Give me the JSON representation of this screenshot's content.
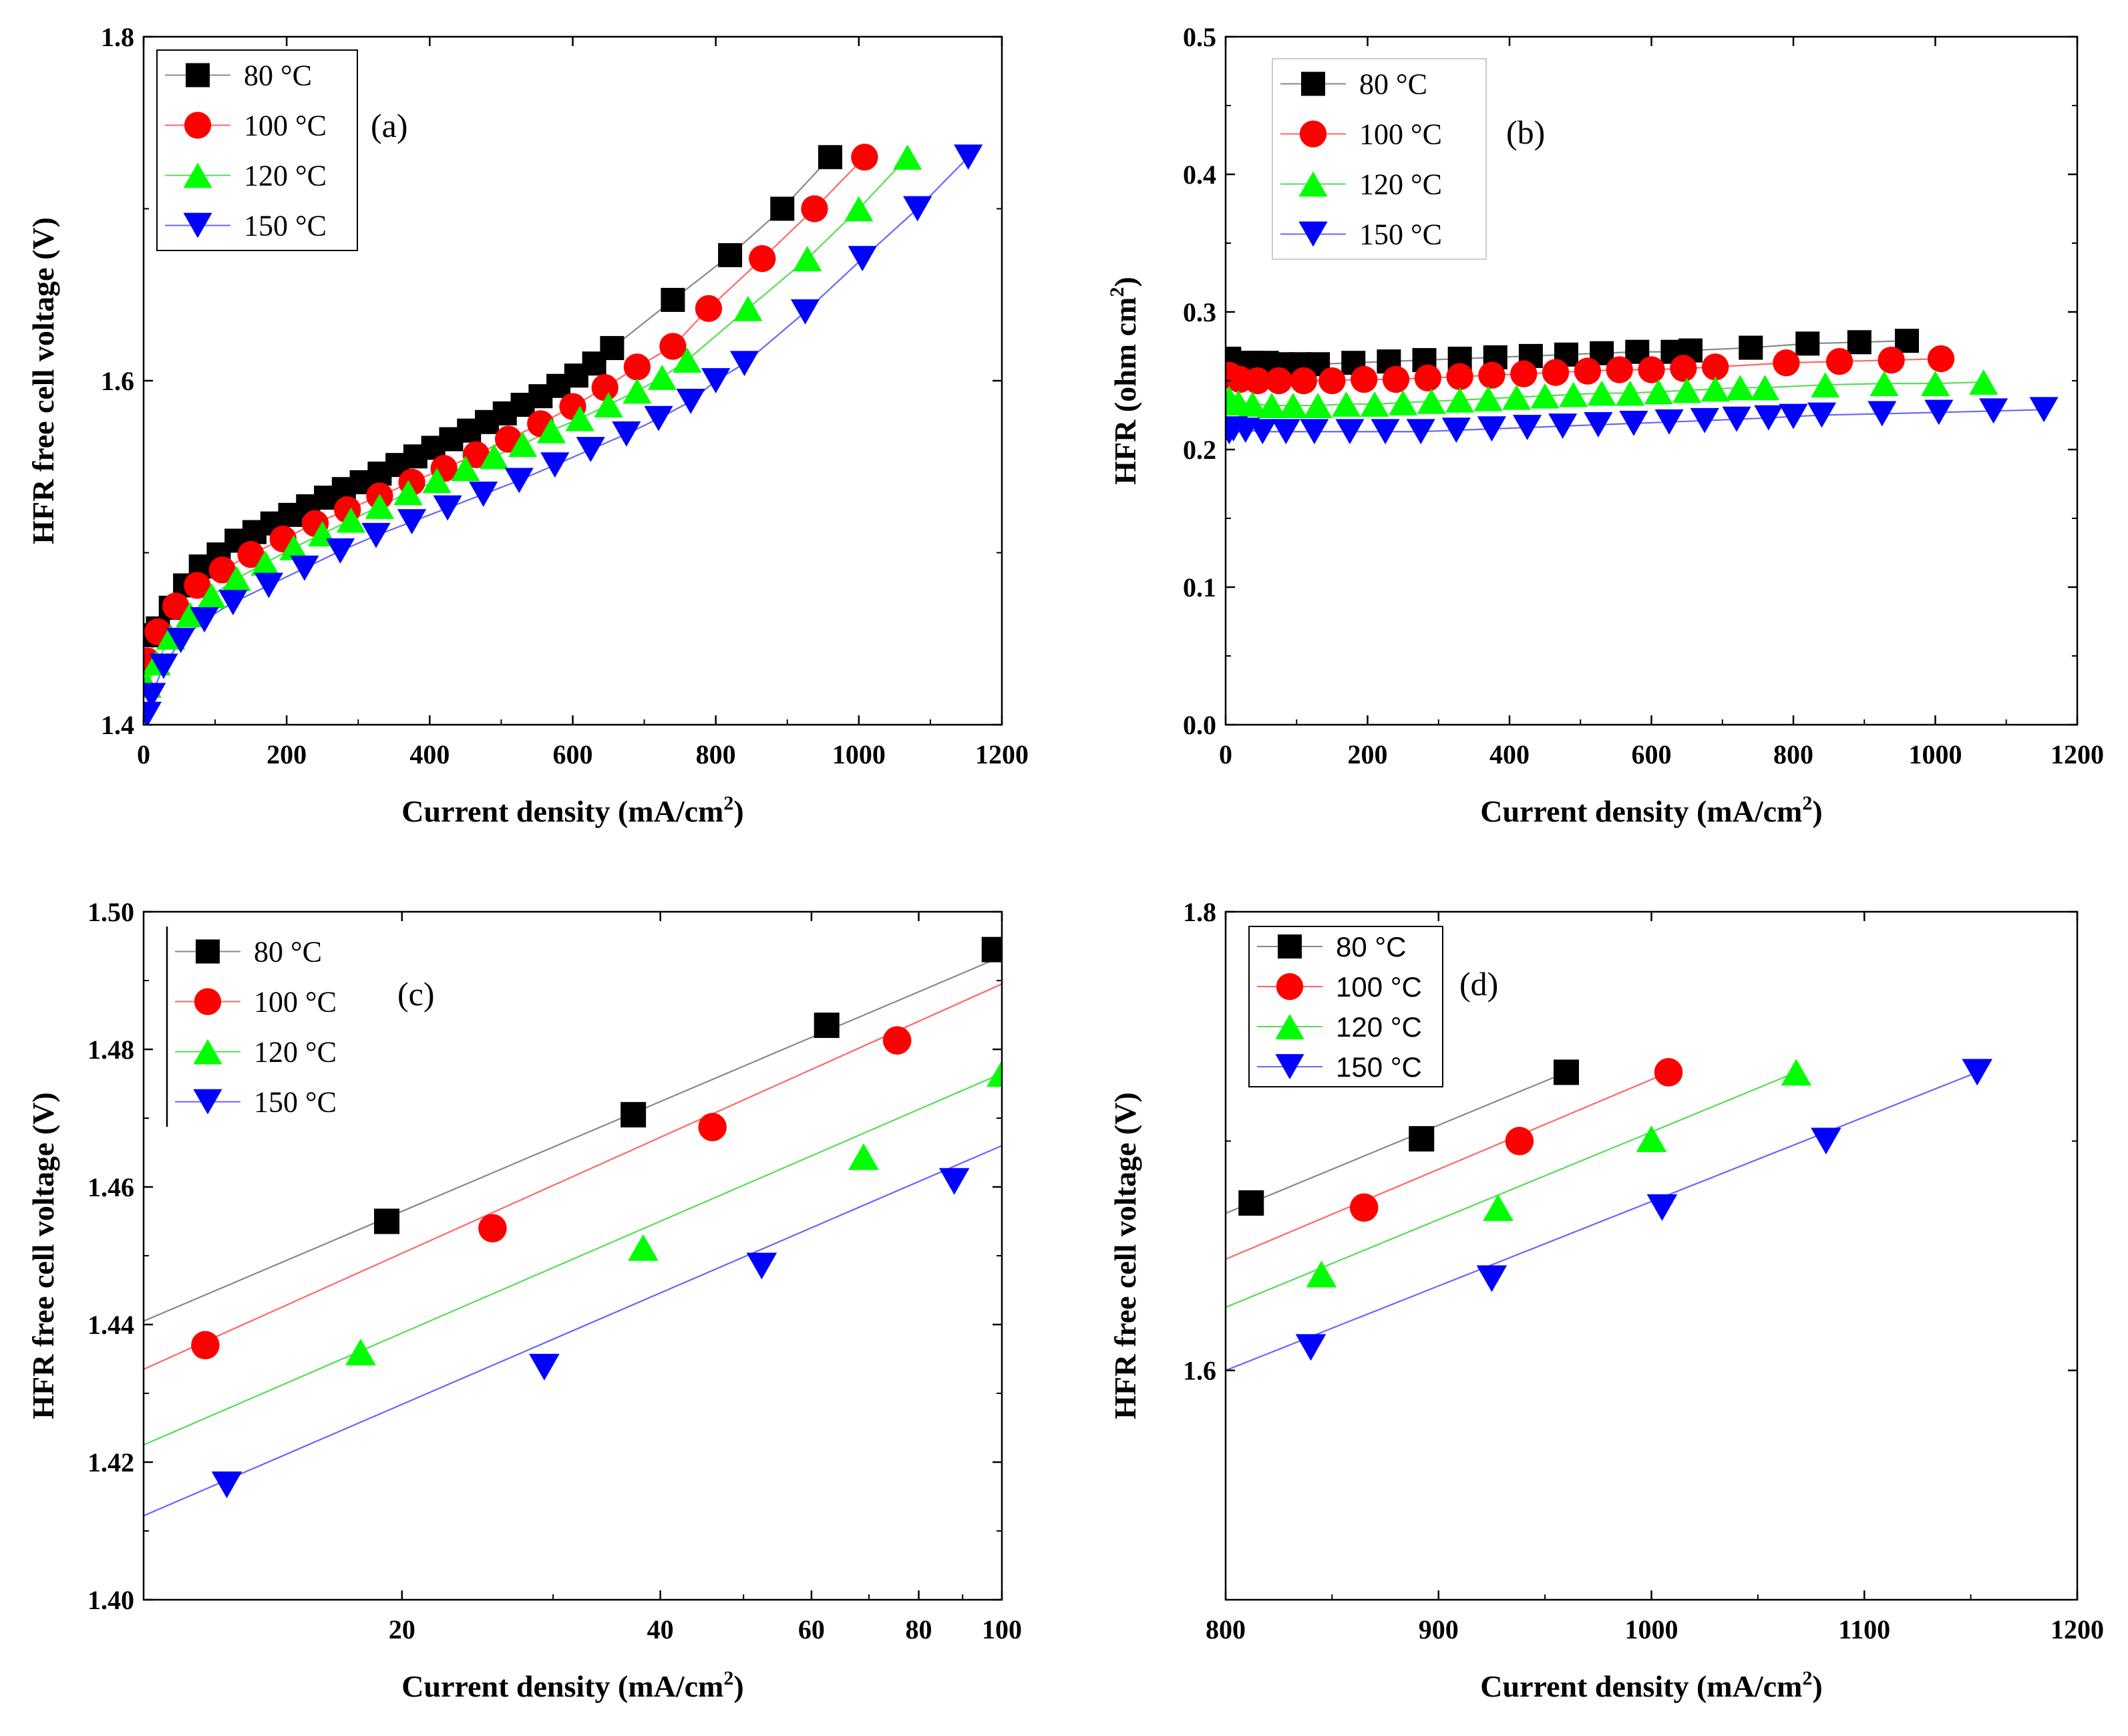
{
  "colors": {
    "s80": "#000000",
    "s100": "#ff0000",
    "s120": "#00ff00",
    "s150": "#0000ff",
    "line80": "#888888",
    "line100": "#ff6666",
    "line120": "#55dd55",
    "line150": "#6666ff"
  },
  "chart_data": [
    {
      "panel": "a",
      "type": "scatter",
      "tag": "(a)",
      "xlabel": "Current density (mA/cm",
      "xlabel_sup": "2",
      "xlabel_tail": ")",
      "ylabel": "HFR free cell voltage (V)",
      "xlim": [
        0,
        1200
      ],
      "ylim": [
        1.4,
        1.8
      ],
      "x_scale": "linear",
      "xticks": [
        0,
        200,
        400,
        600,
        800,
        1000,
        1200
      ],
      "xtick_labels": [
        "0",
        "200",
        "400",
        "600",
        "800",
        "1000",
        "1200"
      ],
      "yticks": [
        1.4,
        1.6,
        1.8
      ],
      "ytick_labels": [
        "1.4",
        "1.6",
        "1.8"
      ],
      "legend_position": "top-left",
      "series": [
        {
          "name": "80 °C",
          "marker": "square",
          "color_key": "s80",
          "line_key": "line80",
          "x": [
            5,
            20,
            38,
            58,
            80,
            105,
            130,
            155,
            180,
            205,
            230,
            255,
            280,
            305,
            330,
            355,
            380,
            405,
            430,
            455,
            480,
            505,
            530,
            555,
            580,
            605,
            630,
            655,
            740,
            820,
            893,
            960
          ],
          "y": [
            1.452,
            1.456,
            1.468,
            1.481,
            1.492,
            1.499,
            1.507,
            1.512,
            1.517,
            1.522,
            1.527,
            1.532,
            1.537,
            1.541,
            1.546,
            1.551,
            1.556,
            1.561,
            1.566,
            1.571,
            1.576,
            1.581,
            1.586,
            1.591,
            1.597,
            1.603,
            1.61,
            1.619,
            1.647,
            1.673,
            1.7,
            1.73
          ]
        },
        {
          "name": "100 °C",
          "marker": "circle",
          "color_key": "s100",
          "line_key": "line100",
          "x": [
            5,
            20,
            45,
            75,
            110,
            150,
            195,
            240,
            285,
            330,
            375,
            420,
            465,
            510,
            555,
            600,
            645,
            690,
            740,
            790,
            865,
            938,
            1008
          ],
          "y": [
            1.437,
            1.454,
            1.469,
            1.481,
            1.49,
            1.499,
            1.508,
            1.517,
            1.525,
            1.533,
            1.541,
            1.549,
            1.557,
            1.566,
            1.575,
            1.585,
            1.596,
            1.608,
            1.62,
            1.642,
            1.671,
            1.7,
            1.73
          ]
        },
        {
          "name": "120 °C",
          "marker": "triangle-up",
          "color_key": "s120",
          "line_key": "line120",
          "x": [
            5,
            18,
            38,
            65,
            95,
            130,
            170,
            210,
            250,
            290,
            330,
            370,
            410,
            450,
            490,
            530,
            570,
            610,
            650,
            690,
            725,
            760,
            845,
            928,
            1000,
            1068
          ],
          "y": [
            1.423,
            1.436,
            1.451,
            1.464,
            1.475,
            1.485,
            1.494,
            1.503,
            1.511,
            1.519,
            1.527,
            1.535,
            1.542,
            1.549,
            1.556,
            1.563,
            1.571,
            1.578,
            1.586,
            1.594,
            1.602,
            1.612,
            1.642,
            1.671,
            1.7,
            1.73
          ]
        },
        {
          "name": "150 °C",
          "marker": "triangle-down",
          "color_key": "s150",
          "line_key": "line150",
          "x": [
            5,
            11,
            28,
            52,
            85,
            125,
            175,
            225,
            275,
            325,
            375,
            425,
            475,
            525,
            575,
            625,
            675,
            720,
            765,
            800,
            840,
            925,
            1005,
            1082,
            1153
          ],
          "y": [
            1.406,
            1.417,
            1.434,
            1.449,
            1.461,
            1.471,
            1.481,
            1.491,
            1.501,
            1.51,
            1.518,
            1.526,
            1.534,
            1.542,
            1.551,
            1.56,
            1.569,
            1.578,
            1.588,
            1.6,
            1.61,
            1.64,
            1.671,
            1.7,
            1.73
          ]
        }
      ]
    },
    {
      "panel": "b",
      "type": "scatter",
      "tag": "(b)",
      "xlabel": "Current density (mA/cm",
      "xlabel_sup": "2",
      "xlabel_tail": ")",
      "ylabel": "HFR (ohm cm",
      "ylabel_sup": "2",
      "ylabel_tail": ")",
      "xlim": [
        0,
        1200
      ],
      "ylim": [
        0.0,
        0.5
      ],
      "x_scale": "linear",
      "xticks": [
        0,
        200,
        400,
        600,
        800,
        1000,
        1200
      ],
      "xtick_labels": [
        "0",
        "200",
        "400",
        "600",
        "800",
        "1000",
        "1200"
      ],
      "yticks": [
        0.0,
        0.1,
        0.2,
        0.3,
        0.4,
        0.5
      ],
      "ytick_labels": [
        "0.0",
        "0.1",
        "0.2",
        "0.3",
        "0.4",
        "0.5"
      ],
      "legend_position": "top-left",
      "series": [
        {
          "name": "80 °C",
          "marker": "square",
          "color_key": "s80",
          "line_key": "line80",
          "x": [
            5,
            20,
            38,
            58,
            80,
            105,
            130,
            180,
            230,
            280,
            330,
            380,
            430,
            480,
            530,
            580,
            630,
            655,
            740,
            820,
            893,
            960
          ],
          "y": [
            0.266,
            0.263,
            0.263,
            0.263,
            0.262,
            0.262,
            0.262,
            0.263,
            0.264,
            0.265,
            0.266,
            0.267,
            0.268,
            0.269,
            0.27,
            0.271,
            0.271,
            0.272,
            0.274,
            0.277,
            0.278,
            0.279
          ]
        },
        {
          "name": "100 °C",
          "marker": "circle",
          "color_key": "s100",
          "line_key": "line100",
          "x": [
            5,
            20,
            45,
            75,
            110,
            150,
            195,
            240,
            285,
            330,
            375,
            420,
            465,
            510,
            555,
            600,
            645,
            690,
            790,
            865,
            938,
            1008
          ],
          "y": [
            0.254,
            0.251,
            0.25,
            0.25,
            0.25,
            0.25,
            0.251,
            0.251,
            0.252,
            0.253,
            0.254,
            0.255,
            0.256,
            0.257,
            0.258,
            0.258,
            0.259,
            0.26,
            0.263,
            0.264,
            0.265,
            0.266
          ]
        },
        {
          "name": "120 °C",
          "marker": "triangle-up",
          "color_key": "s120",
          "line_key": "line120",
          "x": [
            5,
            18,
            38,
            65,
            95,
            130,
            170,
            210,
            250,
            290,
            330,
            370,
            410,
            450,
            490,
            530,
            570,
            610,
            650,
            690,
            725,
            760,
            845,
            928,
            1000,
            1068
          ],
          "y": [
            0.237,
            0.234,
            0.233,
            0.232,
            0.232,
            0.232,
            0.233,
            0.233,
            0.234,
            0.235,
            0.236,
            0.237,
            0.238,
            0.239,
            0.24,
            0.241,
            0.241,
            0.242,
            0.243,
            0.244,
            0.245,
            0.245,
            0.247,
            0.248,
            0.248,
            0.249
          ]
        },
        {
          "name": "150 °C",
          "marker": "triangle-down",
          "color_key": "s150",
          "line_key": "line150",
          "x": [
            5,
            11,
            28,
            52,
            85,
            125,
            175,
            225,
            275,
            325,
            375,
            425,
            475,
            525,
            575,
            625,
            675,
            720,
            765,
            800,
            840,
            925,
            1005,
            1082,
            1153
          ],
          "y": [
            0.213,
            0.215,
            0.214,
            0.213,
            0.213,
            0.213,
            0.213,
            0.213,
            0.213,
            0.214,
            0.215,
            0.216,
            0.217,
            0.218,
            0.219,
            0.22,
            0.221,
            0.222,
            0.223,
            0.224,
            0.225,
            0.226,
            0.227,
            0.228,
            0.229
          ]
        }
      ]
    },
    {
      "panel": "c",
      "type": "scatter",
      "tag": "(c)",
      "xlabel": "Current density (mA/cm",
      "xlabel_sup": "2",
      "xlabel_tail": ")",
      "ylabel": "HFR free cell voltage (V)",
      "xlim": [
        10,
        100
      ],
      "ylim": [
        1.4,
        1.5
      ],
      "x_scale": "log",
      "xticks": [
        20,
        40,
        60,
        80,
        100
      ],
      "xtick_labels": [
        "20",
        "40",
        "60",
        "80",
        "100"
      ],
      "yticks": [
        1.4,
        1.42,
        1.44,
        1.46,
        1.48,
        1.5
      ],
      "ytick_labels": [
        "1.40",
        "1.42",
        "1.44",
        "1.46",
        "1.48",
        "1.50"
      ],
      "legend_position": "top-left",
      "series": [
        {
          "name": "80 °C",
          "marker": "square",
          "color_key": "s80",
          "line_key": "line80",
          "x": [
            19.2,
            37.2,
            62.5,
            98.0
          ],
          "y": [
            1.455,
            1.4705,
            1.4835,
            1.4945
          ],
          "fit": [
            [
              10,
              1.4405
            ],
            [
              100,
              1.4935
            ]
          ]
        },
        {
          "name": "100 °C",
          "marker": "circle",
          "color_key": "s100",
          "line_key": "line100",
          "x": [
            11.8,
            25.5,
            46.0,
            75.5
          ],
          "y": [
            1.437,
            1.454,
            1.4687,
            1.4813
          ],
          "fit": [
            [
              10,
              1.4335
            ],
            [
              100,
              1.4895
            ]
          ]
        },
        {
          "name": "120 °C",
          "marker": "triangle-up",
          "color_key": "s120",
          "line_key": "line120",
          "x": [
            17.9,
            38.2,
            69.0,
            100.0
          ],
          "y": [
            1.436,
            1.4512,
            1.4644,
            1.4765
          ],
          "fit": [
            [
              10,
              1.4225
            ],
            [
              100,
              1.4765
            ]
          ]
        },
        {
          "name": "150 °C",
          "marker": "triangle-down",
          "color_key": "s150",
          "line_key": "line150",
          "x": [
            12.5,
            29.3,
            52.5,
            88.0
          ],
          "y": [
            1.4167,
            1.4338,
            1.4485,
            1.4608
          ],
          "fit": [
            [
              10,
              1.4122
            ],
            [
              100,
              1.466
            ]
          ]
        }
      ]
    },
    {
      "panel": "d",
      "type": "scatter",
      "tag": "(d)",
      "xlabel": "Current density (mA/cm",
      "xlabel_sup": "2",
      "xlabel_tail": ")",
      "ylabel": "HFR free cell voltage (V)",
      "xlim": [
        800,
        1200
      ],
      "ylim": [
        1.5,
        1.8
      ],
      "x_scale": "linear",
      "xticks": [
        800,
        900,
        1000,
        1100,
        1200
      ],
      "xtick_labels": [
        "800",
        "900",
        "1000",
        "1100",
        "1200"
      ],
      "yticks": [
        1.6,
        1.8
      ],
      "ytick_labels": [
        "1.6",
        "1.8"
      ],
      "minor_yticks": [
        1.5,
        1.7
      ],
      "legend_position": "top-left",
      "series": [
        {
          "name": "80 °C",
          "marker": "square",
          "color_key": "s80",
          "line_key": "line80",
          "x": [
            812,
            892,
            960
          ],
          "y": [
            1.673,
            1.701,
            1.73
          ],
          "fit": [
            [
              800,
              1.6685
            ],
            [
              960,
              1.73
            ]
          ]
        },
        {
          "name": "100 °C",
          "marker": "circle",
          "color_key": "s100",
          "line_key": "line100",
          "x": [
            865,
            938,
            1008
          ],
          "y": [
            1.671,
            1.7,
            1.73
          ],
          "fit": [
            [
              800,
              1.6485
            ],
            [
              1008,
              1.73
            ]
          ]
        },
        {
          "name": "120 °C",
          "marker": "triangle-up",
          "color_key": "s120",
          "line_key": "line120",
          "x": [
            845,
            928,
            1000,
            1068
          ],
          "y": [
            1.642,
            1.671,
            1.701,
            1.73
          ],
          "fit": [
            [
              800,
              1.6275
            ],
            [
              1068,
              1.73
            ]
          ]
        },
        {
          "name": "150 °C",
          "marker": "triangle-down",
          "color_key": "s150",
          "line_key": "line150",
          "x": [
            840,
            925,
            1005,
            1082,
            1153
          ],
          "y": [
            1.61,
            1.64,
            1.671,
            1.7,
            1.73
          ],
          "fit": [
            [
              800,
              1.6
            ],
            [
              1153,
              1.73
            ]
          ]
        }
      ]
    }
  ]
}
